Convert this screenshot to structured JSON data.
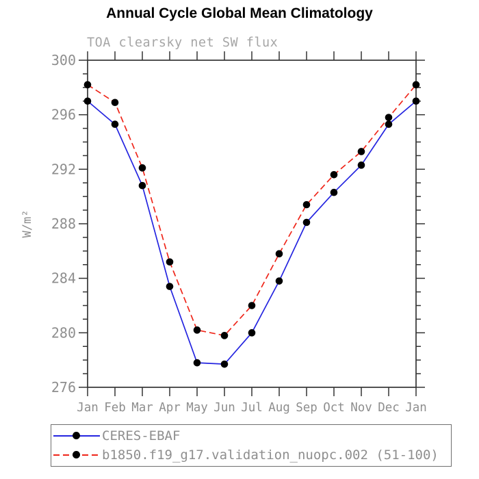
{
  "chart_data": {
    "type": "line",
    "title": "Annual Cycle Global Mean Climatology",
    "subtitle": "TOA clearsky net SW flux",
    "ylabel": "W/m²",
    "x_categories": [
      "Jan",
      "Feb",
      "Mar",
      "Apr",
      "May",
      "Jun",
      "Jul",
      "Aug",
      "Sep",
      "Oct",
      "Nov",
      "Dec",
      "Jan"
    ],
    "ylim": [
      276,
      300
    ],
    "ytick_interval_major": 4,
    "ytick_interval_minor": 1,
    "grid": false,
    "legend_position": "bottom",
    "axis_color": "#333333",
    "label_color": "#8e8e8e",
    "subtitle_color": "#a6a6a6",
    "marker_color": "#000000",
    "series": [
      {
        "name": "CERES-EBAF",
        "color": "#2424e0",
        "line_style": "solid",
        "marker": "filled-circle",
        "values": [
          297.0,
          295.3,
          290.8,
          283.4,
          277.8,
          277.7,
          280.0,
          283.8,
          288.1,
          290.3,
          292.3,
          295.3,
          297.0
        ]
      },
      {
        "name": "b1850.f19_g17.validation_nuopc.002 (51-100)",
        "color": "#ef2519",
        "line_style": "dashed",
        "marker": "filled-circle",
        "values": [
          298.2,
          296.9,
          292.1,
          285.2,
          280.2,
          279.8,
          282.0,
          285.8,
          289.4,
          291.6,
          293.3,
          295.8,
          298.2
        ]
      }
    ]
  }
}
